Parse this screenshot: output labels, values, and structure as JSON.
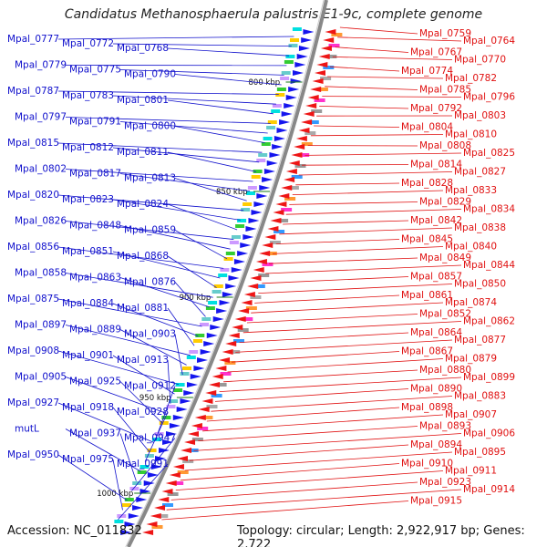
{
  "title": "Candidatus Methanosphaerula palustris E1-9c, complete genome",
  "footer": {
    "accession": "Accession: NC_011832",
    "topology": "Topology: circular; Length: 2,922,917 bp; Genes: 2,722"
  },
  "colors": {
    "left_labels": "#1010cc",
    "right_labels": "#e01010",
    "backbone": "#888888",
    "kbp_tick": "#1a7a1a"
  },
  "kbp_ticks": [
    "800 kbp",
    "850 kbp",
    "900 kbp",
    "950 kbp",
    "1000 kbp"
  ],
  "left_genes": [
    "Mpal_0777",
    "Mpal_0772",
    "Mpal_0768",
    "Mpal_0779",
    "Mpal_0775",
    "Mpal_0790",
    "Mpal_0787",
    "Mpal_0783",
    "Mpal_0801",
    "Mpal_0797",
    "Mpal_0791",
    "Mpal_0800",
    "Mpal_0815",
    "Mpal_0812",
    "Mpal_0811",
    "Mpal_0802",
    "Mpal_0817",
    "Mpal_0813",
    "Mpal_0820",
    "Mpal_0823",
    "Mpal_0824",
    "Mpal_0826",
    "Mpal_0848",
    "Mpal_0859",
    "Mpal_0856",
    "Mpal_0851",
    "Mpal_0868",
    "Mpal_0858",
    "Mpal_0863",
    "Mpal_0876",
    "Mpal_0875",
    "Mpal_0884",
    "Mpal_0881",
    "Mpal_0897",
    "Mpal_0889",
    "Mpal_0903",
    "Mpal_0908",
    "Mpal_0901",
    "Mpal_0913",
    "Mpal_0905",
    "Mpal_0925",
    "Mpal_0912",
    "Mpal_0927",
    "Mpal_0918",
    "Mpal_0928",
    "mutL",
    "Mpal_0937",
    "Mpal_0947",
    "Mpal_0950",
    "Mpal_0975",
    "Mpal_0991"
  ],
  "right_genes": [
    "Mpal_0759",
    "Mpal_0764",
    "Mpal_0767",
    "Mpal_0770",
    "Mpal_0774",
    "Mpal_0782",
    "Mpal_0785",
    "Mpal_0796",
    "Mpal_0792",
    "Mpal_0803",
    "Mpal_0804",
    "Mpal_0810",
    "Mpal_0808",
    "Mpal_0825",
    "Mpal_0814",
    "Mpal_0827",
    "Mpal_0828",
    "Mpal_0833",
    "Mpal_0829",
    "Mpal_0834",
    "Mpal_0842",
    "Mpal_0838",
    "Mpal_0845",
    "Mpal_0840",
    "Mpal_0849",
    "Mpal_0844",
    "Mpal_0857",
    "Mpal_0850",
    "Mpal_0861",
    "Mpal_0874",
    "Mpal_0852",
    "Mpal_0862",
    "Mpal_0864",
    "Mpal_0877",
    "Mpal_0867",
    "Mpal_0879",
    "Mpal_0880",
    "Mpal_0899",
    "Mpal_0890",
    "Mpal_0883",
    "Mpal_0898",
    "Mpal_0907",
    "Mpal_0893",
    "Mpal_0906",
    "Mpal_0894",
    "Mpal_0895",
    "Mpal_0910",
    "Mpal_0911",
    "Mpal_0923",
    "Mpal_0914",
    "Mpal_0915"
  ]
}
